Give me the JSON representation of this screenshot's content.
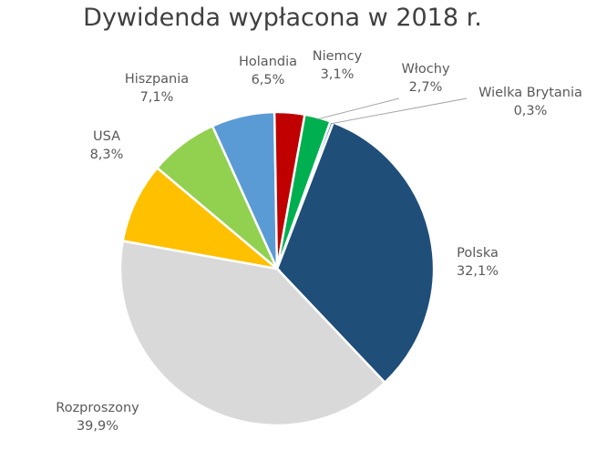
{
  "chart_data": {
    "type": "pie",
    "title": "Dywidenda wypłacona w 2018 r.",
    "slices": [
      {
        "label": "Polska",
        "value": 32.1,
        "display": "32,1%",
        "color": "#1F4E79"
      },
      {
        "label": "Rozproszony",
        "value": 39.9,
        "display": "39,9%",
        "color": "#D9D9D9"
      },
      {
        "label": "USA",
        "value": 8.3,
        "display": "8,3%",
        "color": "#FFC000"
      },
      {
        "label": "Hiszpania",
        "value": 7.1,
        "display": "7,1%",
        "color": "#92D050"
      },
      {
        "label": "Holandia",
        "value": 6.5,
        "display": "6,5%",
        "color": "#5B9BD5"
      },
      {
        "label": "Niemcy",
        "value": 3.1,
        "display": "3,1%",
        "color": "#C00000"
      },
      {
        "label": "Włochy",
        "value": 2.7,
        "display": "2,7%",
        "color": "#00B050"
      },
      {
        "label": "Wielka Brytania",
        "value": 0.3,
        "display": "0,3%",
        "color": "#2E75B6"
      }
    ]
  }
}
